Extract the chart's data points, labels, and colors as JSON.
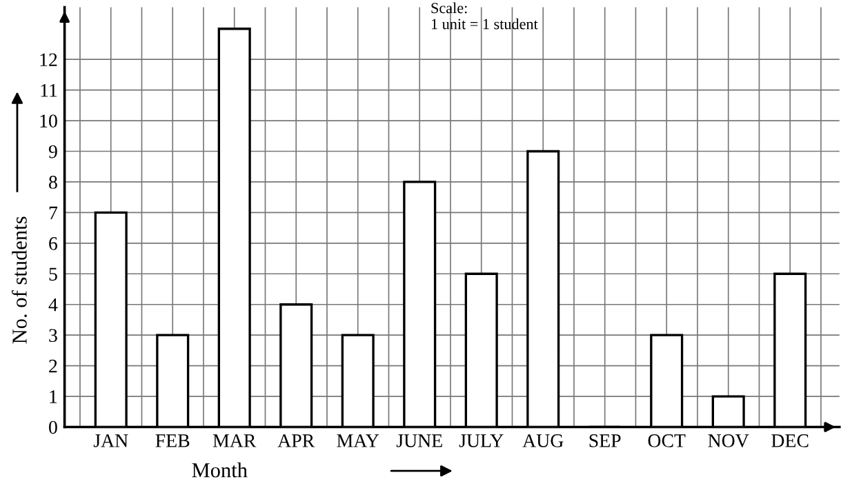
{
  "chart_data": {
    "type": "bar",
    "xlabel": "Month",
    "ylabel": "No. of students",
    "annotations": [
      "Scale:\n1 unit = 1 student"
    ],
    "categories": [
      "JAN",
      "FEB",
      "MAR",
      "APR",
      "MAY",
      "JUNE",
      "JULY",
      "AUG",
      "SEP",
      "OCT",
      "NOV",
      "DEC"
    ],
    "values": [
      7,
      3,
      13,
      4,
      3,
      8,
      5,
      9,
      0,
      3,
      1,
      5
    ],
    "color": "#ffffff",
    "ylim": [
      0,
      13.7
    ],
    "yticks": [
      0,
      1,
      2,
      3,
      4,
      5,
      6,
      7,
      8,
      9,
      10,
      11,
      12
    ],
    "grid": true
  }
}
